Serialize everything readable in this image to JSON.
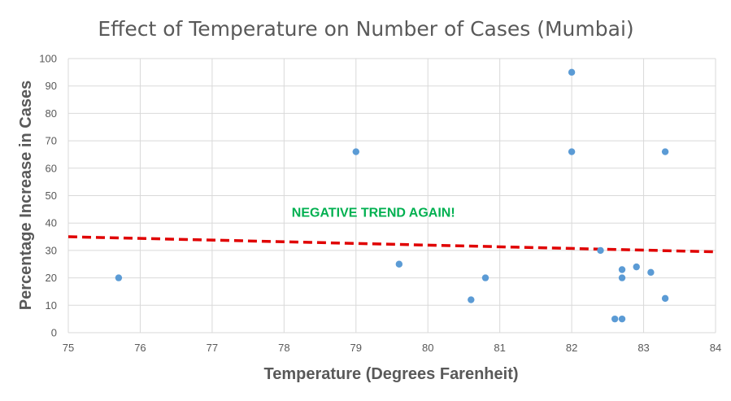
{
  "chart_data": {
    "type": "scatter",
    "title": "Effect of Temperature on Number of Cases (Mumbai)",
    "xlabel": "Temperature (Degrees Farenheit)",
    "ylabel": "Percentage Increase in Cases",
    "xlim": [
      75,
      84
    ],
    "ylim": [
      0,
      100
    ],
    "x_ticks": [
      "75",
      "76",
      "77",
      "78",
      "79",
      "80",
      "81",
      "82",
      "83",
      "84"
    ],
    "y_ticks": [
      "0",
      "10",
      "20",
      "30",
      "40",
      "50",
      "60",
      "70",
      "80",
      "90",
      "100"
    ],
    "grid": true,
    "series": [
      {
        "points": [
          {
            "x": 75.7,
            "y": 20
          },
          {
            "x": 79.0,
            "y": 66
          },
          {
            "x": 79.6,
            "y": 25
          },
          {
            "x": 80.6,
            "y": 12
          },
          {
            "x": 80.8,
            "y": 20
          },
          {
            "x": 82.0,
            "y": 95
          },
          {
            "x": 82.0,
            "y": 66
          },
          {
            "x": 82.4,
            "y": 30
          },
          {
            "x": 82.6,
            "y": 5
          },
          {
            "x": 82.7,
            "y": 5
          },
          {
            "x": 82.7,
            "y": 20
          },
          {
            "x": 82.7,
            "y": 23
          },
          {
            "x": 82.9,
            "y": 24
          },
          {
            "x": 83.1,
            "y": 22
          },
          {
            "x": 83.3,
            "y": 66
          },
          {
            "x": 83.3,
            "y": 12.5
          }
        ],
        "color": "#5b9bd5"
      }
    ],
    "trendline": {
      "type": "linear",
      "start": {
        "x": 75,
        "y": 35
      },
      "end": {
        "x": 84,
        "y": 29.5
      },
      "color": "#e00000",
      "style": "dashed"
    },
    "annotations": [
      {
        "text": "NEGATIVE TREND AGAIN!",
        "x": 79.0,
        "y": 42.3,
        "color": "#00b050"
      }
    ],
    "colors": {
      "grid": "#d9d9d9",
      "text": "#595959"
    }
  }
}
